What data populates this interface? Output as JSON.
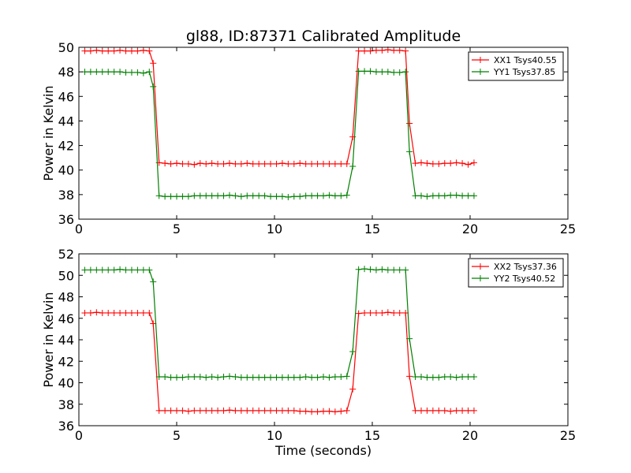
{
  "chart_data": [
    {
      "type": "line",
      "title": "gl88, ID:87371 Calibrated Amplitude",
      "xlabel": "",
      "ylabel": "Power in Kelvin",
      "xlim": [
        0,
        25
      ],
      "ylim": [
        36,
        50
      ],
      "xticks": [
        0,
        5,
        10,
        15,
        20,
        25
      ],
      "yticks": [
        36,
        38,
        40,
        42,
        44,
        46,
        48,
        50
      ],
      "grid": false,
      "legend_position": "top-right",
      "x": [
        0.3,
        0.6,
        0.9,
        1.2,
        1.5,
        1.8,
        2.1,
        2.4,
        2.7,
        3.0,
        3.3,
        3.6,
        3.8,
        4.1,
        4.4,
        4.7,
        5.0,
        5.3,
        5.6,
        5.9,
        6.2,
        6.5,
        6.8,
        7.1,
        7.4,
        7.7,
        8.0,
        8.3,
        8.6,
        8.9,
        9.2,
        9.5,
        9.8,
        10.1,
        10.4,
        10.7,
        11.0,
        11.3,
        11.6,
        11.9,
        12.2,
        12.5,
        12.8,
        13.1,
        13.4,
        13.7,
        14.0,
        14.3,
        14.6,
        14.9,
        15.2,
        15.5,
        15.8,
        16.1,
        16.4,
        16.7,
        16.9,
        17.2,
        17.5,
        17.8,
        18.1,
        18.4,
        18.7,
        19.0,
        19.3,
        19.6,
        19.9,
        20.2
      ],
      "series": [
        {
          "name": "XX1 Tsys40.55",
          "color": "#ff0000",
          "values": [
            49.7,
            49.7,
            49.75,
            49.7,
            49.7,
            49.7,
            49.75,
            49.7,
            49.7,
            49.7,
            49.75,
            49.7,
            48.7,
            40.6,
            40.55,
            40.5,
            40.55,
            40.5,
            40.5,
            40.45,
            40.55,
            40.5,
            40.55,
            40.5,
            40.5,
            40.55,
            40.5,
            40.5,
            40.55,
            40.5,
            40.5,
            40.5,
            40.5,
            40.5,
            40.55,
            40.5,
            40.5,
            40.55,
            40.5,
            40.5,
            40.5,
            40.5,
            40.5,
            40.5,
            40.5,
            40.5,
            42.7,
            49.7,
            49.7,
            49.7,
            49.75,
            49.75,
            49.8,
            49.75,
            49.75,
            49.7,
            43.8,
            40.55,
            40.6,
            40.55,
            40.5,
            40.5,
            40.55,
            40.55,
            40.6,
            40.55,
            40.45,
            40.6
          ]
        },
        {
          "name": "YY1 Tsys37.85",
          "color": "#008000",
          "values": [
            48.0,
            48.0,
            48.0,
            48.0,
            48.0,
            48.0,
            48.0,
            47.95,
            47.95,
            47.95,
            47.9,
            48.0,
            46.8,
            37.9,
            37.85,
            37.85,
            37.85,
            37.85,
            37.85,
            37.9,
            37.9,
            37.9,
            37.9,
            37.9,
            37.9,
            37.95,
            37.9,
            37.85,
            37.9,
            37.9,
            37.9,
            37.9,
            37.85,
            37.85,
            37.85,
            37.8,
            37.85,
            37.85,
            37.9,
            37.9,
            37.9,
            37.9,
            37.95,
            37.9,
            37.9,
            37.95,
            40.3,
            48.05,
            48.05,
            48.05,
            48.0,
            48.0,
            48.0,
            47.95,
            47.95,
            48.0,
            41.5,
            37.9,
            37.9,
            37.85,
            37.9,
            37.9,
            37.9,
            37.95,
            37.95,
            37.9,
            37.9,
            37.9
          ]
        }
      ]
    },
    {
      "type": "line",
      "title": "",
      "xlabel": "Time (seconds)",
      "ylabel": "Power in Kelvin",
      "xlim": [
        0,
        25
      ],
      "ylim": [
        36,
        52
      ],
      "xticks": [
        0,
        5,
        10,
        15,
        20,
        25
      ],
      "yticks": [
        36,
        38,
        40,
        42,
        44,
        46,
        48,
        50,
        52
      ],
      "grid": false,
      "legend_position": "top-right",
      "x": [
        0.3,
        0.6,
        0.9,
        1.2,
        1.5,
        1.8,
        2.1,
        2.4,
        2.7,
        3.0,
        3.3,
        3.6,
        3.8,
        4.1,
        4.4,
        4.7,
        5.0,
        5.3,
        5.6,
        5.9,
        6.2,
        6.5,
        6.8,
        7.1,
        7.4,
        7.7,
        8.0,
        8.3,
        8.6,
        8.9,
        9.2,
        9.5,
        9.8,
        10.1,
        10.4,
        10.7,
        11.0,
        11.3,
        11.6,
        11.9,
        12.2,
        12.5,
        12.8,
        13.1,
        13.4,
        13.7,
        14.0,
        14.3,
        14.6,
        14.9,
        15.2,
        15.5,
        15.8,
        16.1,
        16.4,
        16.7,
        16.9,
        17.2,
        17.5,
        17.8,
        18.1,
        18.4,
        18.7,
        19.0,
        19.3,
        19.6,
        19.9,
        20.2
      ],
      "series": [
        {
          "name": "XX2 Tsys37.36",
          "color": "#ff0000",
          "values": [
            46.5,
            46.5,
            46.55,
            46.5,
            46.5,
            46.5,
            46.5,
            46.5,
            46.5,
            46.5,
            46.5,
            46.5,
            45.5,
            37.4,
            37.4,
            37.4,
            37.4,
            37.4,
            37.35,
            37.4,
            37.4,
            37.4,
            37.4,
            37.4,
            37.4,
            37.45,
            37.4,
            37.4,
            37.4,
            37.4,
            37.4,
            37.4,
            37.4,
            37.4,
            37.4,
            37.4,
            37.4,
            37.35,
            37.35,
            37.3,
            37.3,
            37.35,
            37.35,
            37.3,
            37.35,
            37.4,
            39.4,
            46.45,
            46.5,
            46.5,
            46.5,
            46.5,
            46.55,
            46.5,
            46.5,
            46.5,
            40.6,
            37.4,
            37.4,
            37.4,
            37.4,
            37.4,
            37.4,
            37.35,
            37.4,
            37.4,
            37.4,
            37.4
          ]
        },
        {
          "name": "YY2 Tsys40.52",
          "color": "#008000",
          "values": [
            50.5,
            50.5,
            50.5,
            50.5,
            50.5,
            50.5,
            50.55,
            50.5,
            50.5,
            50.5,
            50.5,
            50.5,
            49.4,
            40.55,
            40.55,
            40.5,
            40.5,
            40.5,
            40.55,
            40.55,
            40.55,
            40.5,
            40.55,
            40.5,
            40.55,
            40.6,
            40.55,
            40.5,
            40.5,
            40.5,
            40.5,
            40.5,
            40.5,
            40.5,
            40.5,
            40.5,
            40.5,
            40.5,
            40.55,
            40.5,
            40.5,
            40.55,
            40.5,
            40.55,
            40.55,
            40.6,
            42.9,
            50.55,
            50.6,
            50.55,
            50.5,
            50.55,
            50.5,
            50.5,
            50.5,
            50.5,
            44.1,
            40.55,
            40.55,
            40.5,
            40.5,
            40.5,
            40.55,
            40.55,
            40.5,
            40.55,
            40.55,
            40.55
          ]
        }
      ]
    }
  ]
}
